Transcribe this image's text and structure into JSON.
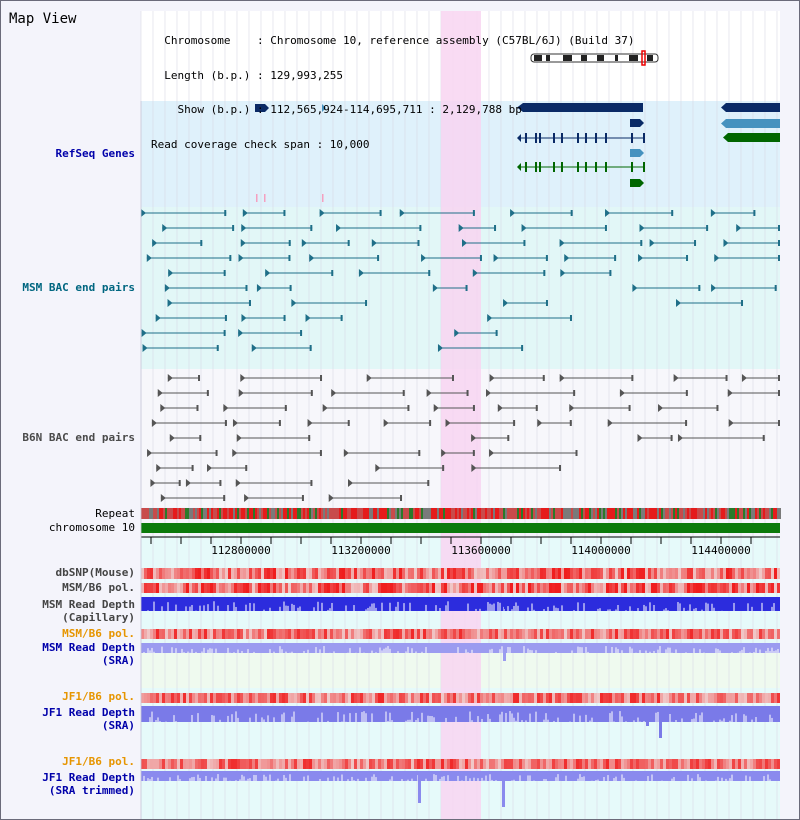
{
  "title": "Map View",
  "info": {
    "lines": [
      "  Chromosome    : Chromosome 10, reference assembly (C57BL/6J) (Build 37)",
      "  Length (b.p.) : 129,993,255",
      "    Show (b.p.) : 112,565,924-114,695,711 : 2,129,788 bp",
      "Read coverage check span : 10,000"
    ]
  },
  "tracks": {
    "refseq": "RefSeq Genes",
    "msm_bac": "MSM BAC end pairs",
    "b6n_bac": "B6N BAC end pairs",
    "repeat": "Repeat",
    "chromosome": "chromosome 10",
    "dbsnp": "dbSNP(Mouse)",
    "msm_pol1": "MSM/B6 pol.",
    "msm_depth_cap": "MSM Read Depth\n(Capillary)",
    "msm_pol2": "MSM/B6 pol.",
    "msm_depth_sra": "MSM Read Depth\n(SRA)",
    "jf1_pol1": "JF1/B6 pol.",
    "jf1_depth_sra": "JF1 Read Depth\n(SRA)",
    "jf1_pol2": "JF1/B6 pol.",
    "jf1_depth_trim": "JF1 Read Depth\n(SRA trimmed)"
  },
  "axis": {
    "ticks": [
      "112800000",
      "113200000",
      "113600000",
      "114000000",
      "114400000"
    ]
  },
  "colors": {
    "refseq_label": "#0000aa",
    "msm_label": "#006680",
    "b6n_label": "#4a4a4a",
    "orange_label": "#e69500",
    "blue_label": "#0000aa",
    "highlight": "#f8d5f1",
    "gene_dark": "#0a2a66",
    "gene_mid": "#4592bf",
    "gene_green": "#006600"
  }
}
